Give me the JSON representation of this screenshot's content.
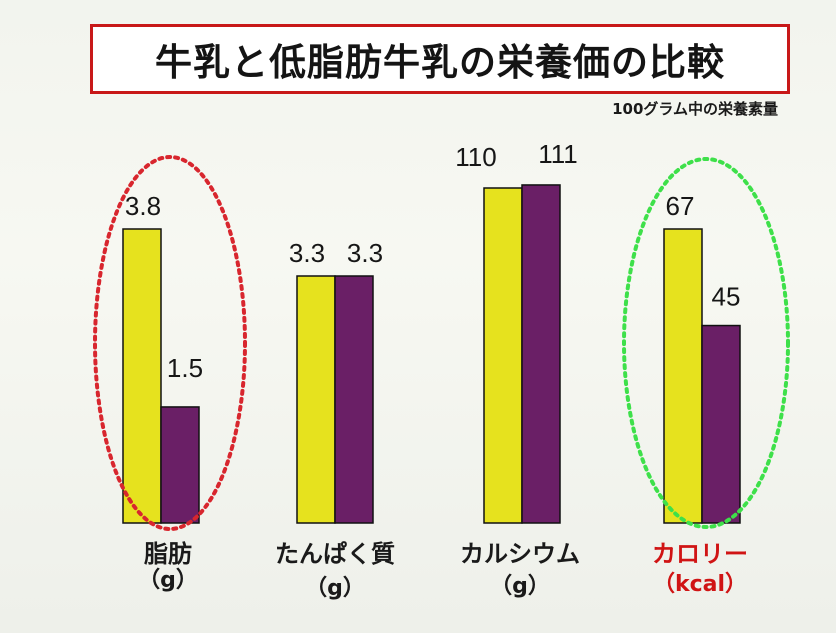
{
  "title": "牛乳と低脂肪牛乳の栄養価の比較",
  "subtitle": "100グラム中の栄養素量",
  "colors": {
    "milk": "#e6e21e",
    "lowfat_milk": "#6a1f66",
    "title_border": "#c81818",
    "highlight_red": "#d8262e",
    "highlight_green": "#3ee04a",
    "category_highlight_text": "#d01414"
  },
  "chart_data": {
    "type": "bar",
    "note": "Each category is shown with an independent bar scale; values are data labels as printed.",
    "categories": [
      {
        "name": "脂肪",
        "unit": "（g）",
        "highlight": "red-dotted-ellipse"
      },
      {
        "name": "たんぱく質",
        "unit": "（g）"
      },
      {
        "name": "カルシウム",
        "unit": "（g）"
      },
      {
        "name": "カロリー",
        "unit": "（kcal）",
        "highlight": "green-dotted-ellipse",
        "label_color": "#d01414"
      }
    ],
    "series": [
      {
        "color": "#e6e21e",
        "values": [
          3.8,
          3.3,
          110,
          67
        ],
        "labels": [
          "3.8",
          "3.3",
          "110",
          "67"
        ]
      },
      {
        "color": "#6a1f66",
        "values": [
          1.5,
          3.3,
          111,
          45
        ],
        "labels": [
          "1.5",
          "3.3",
          "111",
          "45"
        ]
      }
    ],
    "legend": "none",
    "grid": false
  }
}
